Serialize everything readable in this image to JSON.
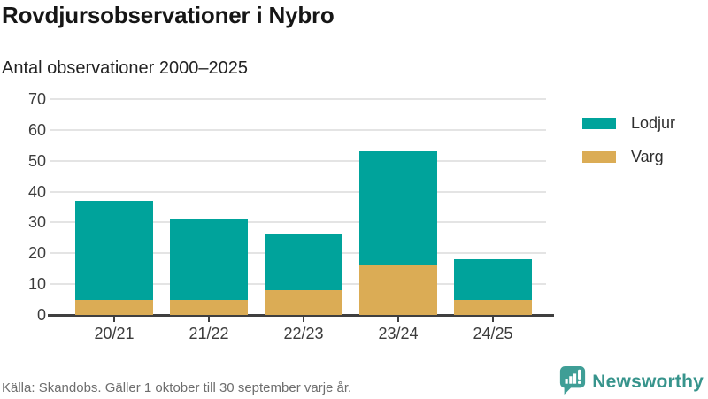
{
  "header": {
    "title": "Rovdjursobservationer i Nybro",
    "subtitle": "Antal observationer 2000–2025"
  },
  "chart_data": {
    "type": "bar",
    "stacked": true,
    "title": "Rovdjursobservationer i Nybro",
    "subtitle": "Antal observationer 2000–2025",
    "xlabel": "",
    "ylabel": "",
    "categories": [
      "20/21",
      "21/22",
      "22/23",
      "23/24",
      "24/25"
    ],
    "series": [
      {
        "name": "Lodjur",
        "color": "#00a39b",
        "values": [
          32,
          26,
          18,
          37,
          13
        ]
      },
      {
        "name": "Varg",
        "color": "#dbac55",
        "values": [
          5,
          5,
          8,
          16,
          5
        ]
      }
    ],
    "totals": [
      37,
      31,
      26,
      53,
      18
    ],
    "ylim": [
      0,
      70
    ],
    "yticks": [
      0,
      10,
      20,
      30,
      40,
      50,
      60,
      70
    ],
    "grid": true,
    "legend_position": "right",
    "stack_order_bottom_to_top": [
      "Varg",
      "Lodjur"
    ]
  },
  "legend": {
    "items": [
      {
        "label": "Lodjur",
        "color": "#00a39b"
      },
      {
        "label": "Varg",
        "color": "#dbac55"
      }
    ]
  },
  "footer": {
    "source": "Källa: Skandobs. Gäller 1 oktober till 30 september varje år.",
    "brand": "Newsworthy"
  },
  "colors": {
    "lodjur": "#00a39b",
    "varg": "#dbac55",
    "axis": "#3f3f3f",
    "grid": "#e4e4e4",
    "tick_text": "#3c3c3c",
    "muted_text": "#6e6e6e",
    "brand_teal": "#37948c",
    "title_text": "#161616"
  }
}
